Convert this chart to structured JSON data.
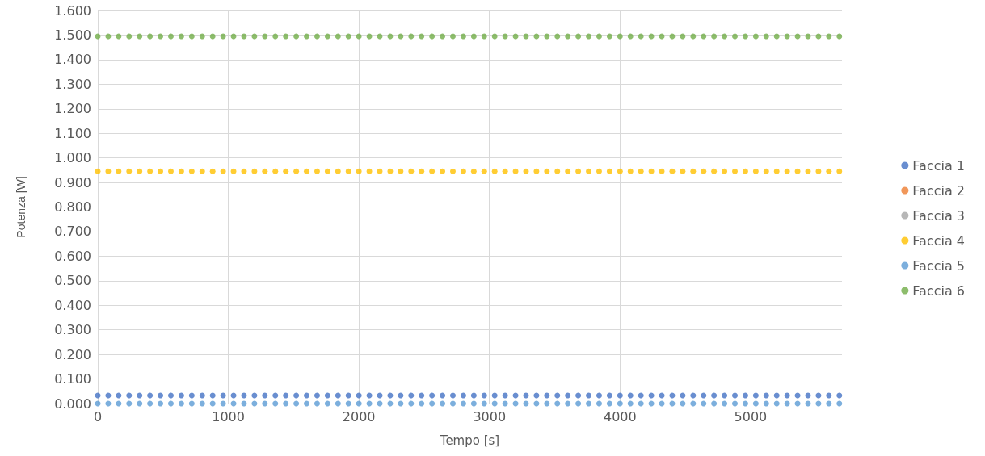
{
  "chart_data": {
    "type": "scatter",
    "xlabel": "Tempo [s]",
    "ylabel": "Potenza [W]",
    "x": [
      0,
      80,
      160,
      240,
      320,
      400,
      480,
      560,
      640,
      720,
      800,
      880,
      960,
      1040,
      1120,
      1200,
      1280,
      1360,
      1440,
      1520,
      1600,
      1680,
      1760,
      1840,
      1920,
      2000,
      2080,
      2160,
      2240,
      2320,
      2400,
      2480,
      2560,
      2640,
      2720,
      2800,
      2880,
      2960,
      3040,
      3120,
      3200,
      3280,
      3360,
      3440,
      3520,
      3600,
      3680,
      3760,
      3840,
      3920,
      4000,
      4080,
      4160,
      4240,
      4320,
      4400,
      4480,
      4560,
      4640,
      4720,
      4800,
      4880,
      4960,
      5040,
      5120,
      5200,
      5280,
      5360,
      5440,
      5520,
      5600,
      5680
    ],
    "series": [
      {
        "name": "Faccia 1",
        "color": "#4472c4",
        "values": [
          0.033,
          0.033,
          0.033,
          0.033,
          0.033,
          0.033,
          0.033,
          0.033,
          0.033,
          0.033,
          0.033,
          0.033,
          0.033,
          0.033,
          0.033,
          0.033,
          0.033,
          0.033,
          0.033,
          0.033,
          0.033,
          0.033,
          0.033,
          0.033,
          0.033,
          0.033,
          0.033,
          0.033,
          0.033,
          0.033,
          0.033,
          0.033,
          0.033,
          0.033,
          0.033,
          0.033,
          0.033,
          0.033,
          0.033,
          0.033,
          0.033,
          0.033,
          0.033,
          0.033,
          0.033,
          0.033,
          0.033,
          0.033,
          0.033,
          0.033,
          0.033,
          0.033,
          0.033,
          0.033,
          0.033,
          0.033,
          0.033,
          0.033,
          0.033,
          0.033,
          0.033,
          0.033,
          0.033,
          0.033,
          0.033,
          0.033,
          0.033,
          0.033,
          0.033,
          0.033,
          0.033,
          0.033
        ]
      },
      {
        "name": "Faccia 2",
        "color": "#ed7d31",
        "values": [
          null,
          null,
          null,
          null,
          null,
          null,
          null,
          null,
          null,
          null,
          null,
          null,
          null,
          null,
          null,
          null,
          null,
          null,
          null,
          null,
          null,
          null,
          null,
          null,
          null,
          null,
          null,
          null,
          null,
          null,
          null,
          null,
          null,
          null,
          null,
          null,
          null,
          null,
          null,
          null,
          null,
          null,
          null,
          null,
          null,
          null,
          null,
          null,
          null,
          null,
          null,
          null,
          null,
          null,
          null,
          null,
          null,
          null,
          null,
          null,
          null,
          null,
          null,
          null,
          null,
          null,
          null,
          null,
          null,
          null,
          null,
          null
        ]
      },
      {
        "name": "Faccia 3",
        "color": "#a5a5a5",
        "values": [
          null,
          null,
          null,
          null,
          null,
          null,
          null,
          null,
          null,
          null,
          null,
          null,
          null,
          null,
          null,
          null,
          null,
          null,
          null,
          null,
          null,
          null,
          null,
          null,
          null,
          null,
          null,
          null,
          null,
          null,
          null,
          null,
          null,
          null,
          null,
          null,
          null,
          null,
          null,
          null,
          null,
          null,
          null,
          null,
          null,
          null,
          null,
          null,
          null,
          null,
          null,
          null,
          null,
          null,
          null,
          null,
          null,
          null,
          null,
          null,
          null,
          null,
          null,
          null,
          null,
          null,
          null,
          null,
          null,
          null,
          null,
          null
        ]
      },
      {
        "name": "Faccia 4",
        "color": "#ffc000",
        "values": [
          0.945,
          0.945,
          0.945,
          0.945,
          0.945,
          0.945,
          0.945,
          0.945,
          0.945,
          0.945,
          0.945,
          0.945,
          0.945,
          0.945,
          0.945,
          0.945,
          0.945,
          0.945,
          0.945,
          0.945,
          0.945,
          0.945,
          0.945,
          0.945,
          0.945,
          0.945,
          0.945,
          0.945,
          0.945,
          0.945,
          0.945,
          0.945,
          0.945,
          0.945,
          0.945,
          0.945,
          0.945,
          0.945,
          0.945,
          0.945,
          0.945,
          0.945,
          0.945,
          0.945,
          0.945,
          0.945,
          0.945,
          0.945,
          0.945,
          0.945,
          0.945,
          0.945,
          0.945,
          0.945,
          0.945,
          0.945,
          0.945,
          0.945,
          0.945,
          0.945,
          0.945,
          0.945,
          0.945,
          0.945,
          0.945,
          0.945,
          0.945,
          0.945,
          0.945,
          0.945,
          0.945,
          0.945
        ]
      },
      {
        "name": "Faccia 5",
        "color": "#5b9bd5",
        "values": [
          0,
          0,
          0,
          0,
          0,
          0,
          0,
          0,
          0,
          0,
          0,
          0,
          0,
          0,
          0,
          0,
          0,
          0,
          0,
          0,
          0,
          0,
          0,
          0,
          0,
          0,
          0,
          0,
          0,
          0,
          0,
          0,
          0,
          0,
          0,
          0,
          0,
          0,
          0,
          0,
          0,
          0,
          0,
          0,
          0,
          0,
          0,
          0,
          0,
          0,
          0,
          0,
          0,
          0,
          0,
          0,
          0,
          0,
          0,
          0,
          0,
          0,
          0,
          0,
          0,
          0,
          0,
          0,
          0,
          0,
          0,
          0
        ]
      },
      {
        "name": "Faccia 6",
        "color": "#70ad47",
        "values": [
          1.495,
          1.495,
          1.495,
          1.495,
          1.495,
          1.495,
          1.495,
          1.495,
          1.495,
          1.495,
          1.495,
          1.495,
          1.495,
          1.495,
          1.495,
          1.495,
          1.495,
          1.495,
          1.495,
          1.495,
          1.495,
          1.495,
          1.495,
          1.495,
          1.495,
          1.495,
          1.495,
          1.495,
          1.495,
          1.495,
          1.495,
          1.495,
          1.495,
          1.495,
          1.495,
          1.495,
          1.495,
          1.495,
          1.495,
          1.495,
          1.495,
          1.495,
          1.495,
          1.495,
          1.495,
          1.495,
          1.495,
          1.495,
          1.495,
          1.495,
          1.495,
          1.495,
          1.495,
          1.495,
          1.495,
          1.495,
          1.495,
          1.495,
          1.495,
          1.495,
          1.495,
          1.495,
          1.495,
          1.495,
          1.495,
          1.495,
          1.495,
          1.495,
          1.495,
          1.495,
          1.495,
          1.495
        ]
      }
    ],
    "xlim": [
      0,
      5700
    ],
    "xticks": [
      0,
      1000,
      2000,
      3000,
      4000,
      5000
    ],
    "ylim": [
      0,
      1.6
    ],
    "yticks": [
      {
        "value": 0,
        "label": "0.000"
      },
      {
        "value": 0.1,
        "label": "0.100"
      },
      {
        "value": 0.2,
        "label": "0.200"
      },
      {
        "value": 0.3,
        "label": "0.300"
      },
      {
        "value": 0.4,
        "label": "0.400"
      },
      {
        "value": 0.5,
        "label": "0.500"
      },
      {
        "value": 0.6,
        "label": "0.600"
      },
      {
        "value": 0.7,
        "label": "0.700"
      },
      {
        "value": 0.8,
        "label": "0.800"
      },
      {
        "value": 0.9,
        "label": "0.900"
      },
      {
        "value": 1,
        "label": "1.000"
      },
      {
        "value": 1.1,
        "label": "1.100"
      },
      {
        "value": 1.2,
        "label": "1.200"
      },
      {
        "value": 1.3,
        "label": "1.300"
      },
      {
        "value": 1.4,
        "label": "1.400"
      },
      {
        "value": 1.5,
        "label": "1.500"
      },
      {
        "value": 1.6,
        "label": "1.600"
      }
    ],
    "grid": true,
    "legend": "right",
    "marker": "circle"
  }
}
